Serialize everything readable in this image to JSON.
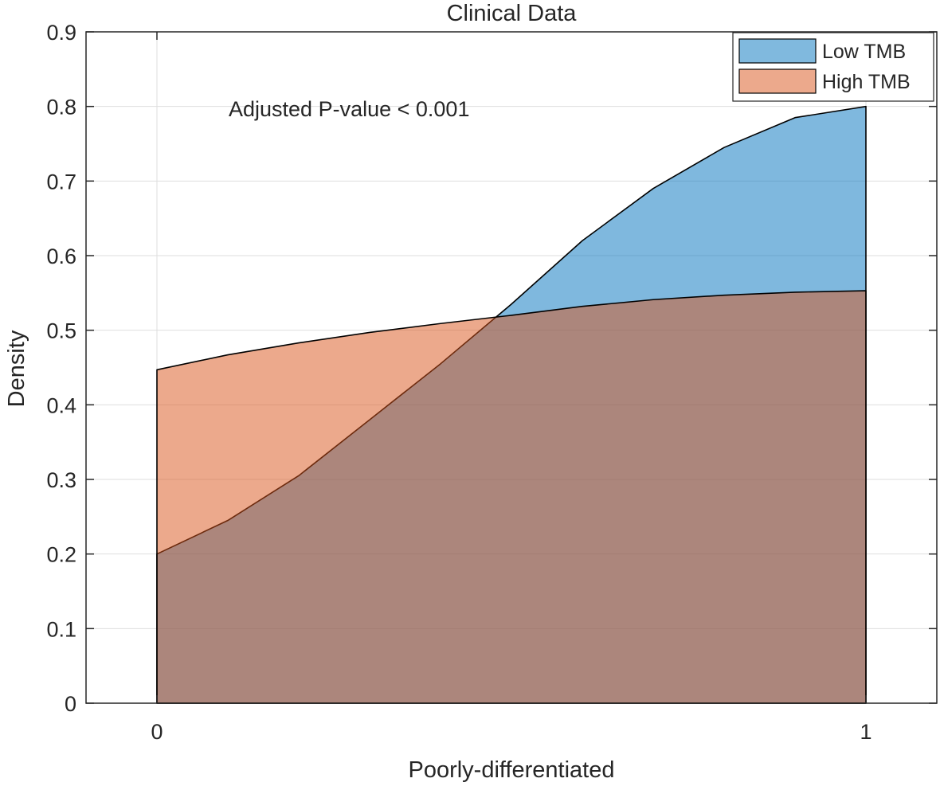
{
  "chart_data": {
    "type": "area",
    "title": "Clinical Data",
    "xlabel": "Poorly-differentiated",
    "ylabel": "Density",
    "xlim": [
      -0.1,
      1.1
    ],
    "ylim": [
      0,
      0.9
    ],
    "x_ticks": [
      0,
      1
    ],
    "y_ticks": [
      0,
      0.1,
      0.2,
      0.3,
      0.4,
      0.5,
      0.6,
      0.7,
      0.8,
      0.9
    ],
    "grid": true,
    "legend_position": "top-right",
    "annotation": "Adjusted P-value < 0.001",
    "series": [
      {
        "name": "Low TMB",
        "color": "#0072BD",
        "x": [
          0,
          0.1,
          0.2,
          0.3,
          0.4,
          0.5,
          0.6,
          0.7,
          0.8,
          0.9,
          1.0
        ],
        "y": [
          0.2,
          0.245,
          0.305,
          0.38,
          0.455,
          0.535,
          0.62,
          0.69,
          0.745,
          0.785,
          0.8
        ]
      },
      {
        "name": "High TMB",
        "color": "#D95319",
        "x": [
          0,
          0.1,
          0.2,
          0.3,
          0.4,
          0.5,
          0.6,
          0.7,
          0.8,
          0.9,
          1.0
        ],
        "y": [
          0.447,
          0.467,
          0.483,
          0.497,
          0.509,
          0.52,
          0.532,
          0.541,
          0.547,
          0.551,
          0.553
        ]
      }
    ]
  }
}
